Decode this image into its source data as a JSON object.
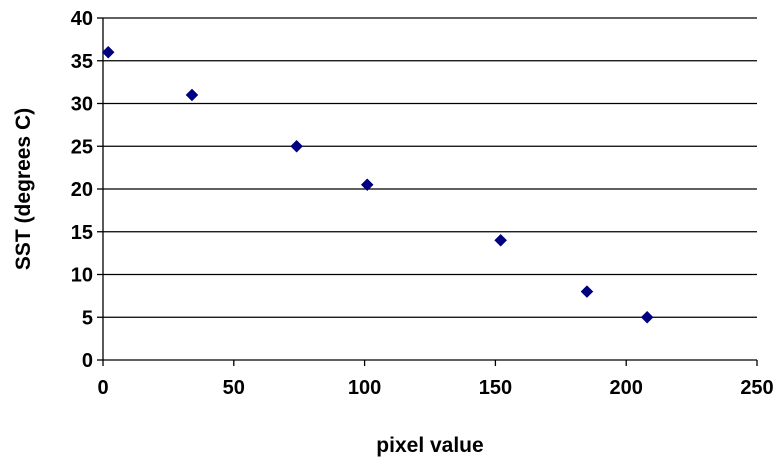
{
  "chart_data": {
    "type": "scatter",
    "title": "",
    "xlabel": "pixel value",
    "ylabel": "SST (degrees C)",
    "xlim": [
      0,
      250
    ],
    "ylim": [
      0,
      40
    ],
    "xticks": [
      0,
      50,
      100,
      150,
      200,
      250
    ],
    "yticks": [
      0,
      5,
      10,
      15,
      20,
      25,
      30,
      35,
      40
    ],
    "grid": "horizontal",
    "legend": "none",
    "marker": "diamond",
    "marker_color": "#000080",
    "series": [
      {
        "x": [
          2,
          34,
          74,
          101,
          152,
          185,
          208
        ],
        "y": [
          36,
          31,
          25,
          20.5,
          14,
          8,
          5
        ]
      }
    ]
  }
}
